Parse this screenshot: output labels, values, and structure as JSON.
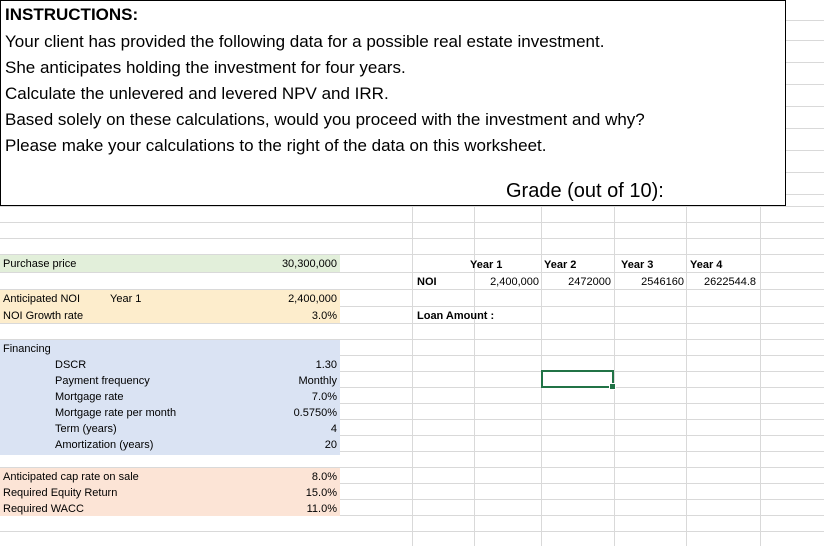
{
  "instructions": {
    "title": "INSTRUCTIONS:",
    "lines": [
      "Your client has provided the following data for a possible real estate investment.",
      "She anticipates holding the investment for four years.",
      "Calculate the unlevered and levered NPV and IRR.",
      "Based solely on these calculations, would you proceed with the investment and why?",
      "Please make your calculations to the right of the data on this worksheet."
    ],
    "grade": "Grade (out of 10):"
  },
  "data": {
    "purchase_price_label": "Purchase price",
    "purchase_price": "30,300,000",
    "noi_label": "Anticipated NOI",
    "noi_year": "Year 1",
    "noi_value": "2,400,000",
    "noi_growth_label": "NOI Growth rate",
    "noi_growth": "3.0%",
    "financing_label": "Financing",
    "financing_rows": [
      {
        "label": "DSCR",
        "value": "1.30"
      },
      {
        "label": "Payment frequency",
        "value": "Monthly"
      },
      {
        "label": "Mortgage rate",
        "value": "7.0%"
      },
      {
        "label": "Mortgage rate per month",
        "value": "0.5750%"
      },
      {
        "label": "Term (years)",
        "value": "4"
      },
      {
        "label": "Amortization (years)",
        "value": "20"
      }
    ],
    "cap_rate_label": "Anticipated cap rate on sale",
    "cap_rate": "8.0%",
    "equity_label": "Required Equity Return",
    "equity": "15.0%",
    "wacc_label": "Required WACC",
    "wacc": "11.0%"
  },
  "calc": {
    "years": [
      "Year 1",
      "Year 2",
      "Year 3",
      "Year 4"
    ],
    "noi_label": "NOI",
    "noi_values": [
      "2,400,000",
      "2472000",
      "2546160",
      "2622544.8"
    ],
    "loan_label": "Loan Amount :"
  }
}
